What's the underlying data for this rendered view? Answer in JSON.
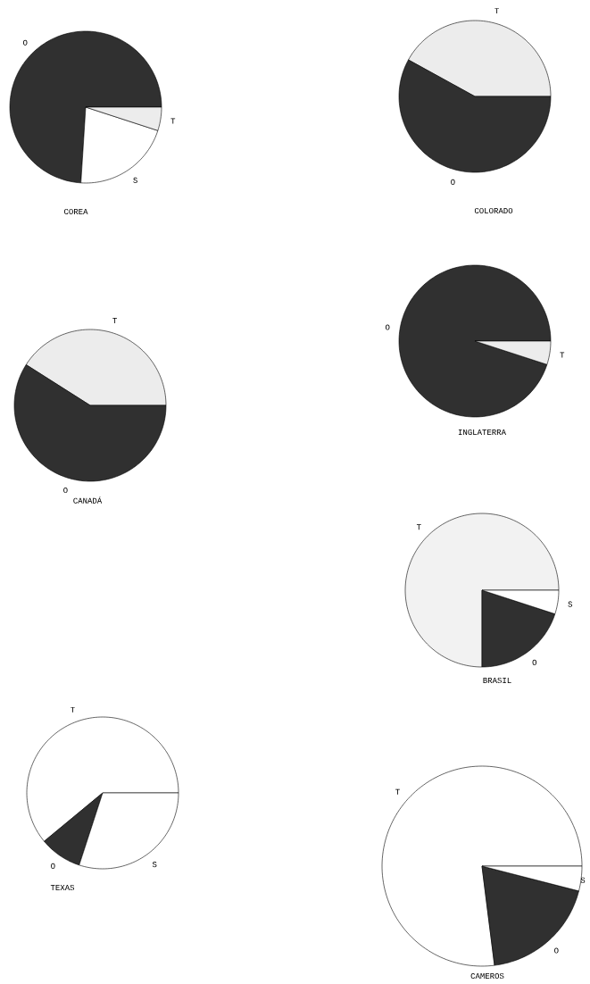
{
  "chart_data": [
    {
      "type": "pie",
      "title": "COREA",
      "categories": [
        "O",
        "S",
        "T"
      ],
      "values": [
        74,
        21,
        5
      ],
      "colors": [
        "#303030",
        "#ffffff",
        "#ececec"
      ]
    },
    {
      "type": "pie",
      "title": "COLORADO",
      "categories": [
        "T",
        "O"
      ],
      "values": [
        42,
        58
      ],
      "colors": [
        "#ececec",
        "#303030"
      ]
    },
    {
      "type": "pie",
      "title": "CANADÁ",
      "categories": [
        "T",
        "O"
      ],
      "values": [
        41,
        59
      ],
      "colors": [
        "#ececec",
        "#303030"
      ]
    },
    {
      "type": "pie",
      "title": "INGLATERRA",
      "categories": [
        "O",
        "T"
      ],
      "values": [
        95,
        5
      ],
      "colors": [
        "#303030",
        "#ececec"
      ]
    },
    {
      "type": "pie",
      "title": "BRASIL",
      "categories": [
        "T",
        "O",
        "S"
      ],
      "values": [
        75,
        20,
        5
      ],
      "colors": [
        "#f2f2f2",
        "#303030",
        "#ffffff"
      ]
    },
    {
      "type": "pie",
      "title": "TEXAS",
      "categories": [
        "T",
        "O",
        "S"
      ],
      "values": [
        61,
        9,
        30
      ],
      "colors": [
        "#ffffff",
        "#303030",
        "#ffffff"
      ]
    },
    {
      "type": "pie",
      "title": "CAMEROS",
      "categories": [
        "T",
        "O",
        "S"
      ],
      "values": [
        77,
        19,
        4
      ],
      "colors": [
        "#ffffff",
        "#303030",
        "#ffffff"
      ]
    }
  ]
}
